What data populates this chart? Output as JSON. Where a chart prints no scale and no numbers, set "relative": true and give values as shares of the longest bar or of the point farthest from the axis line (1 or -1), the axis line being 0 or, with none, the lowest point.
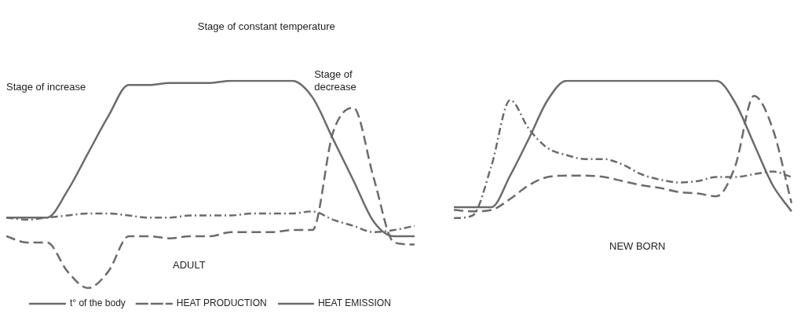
{
  "chart_data": [
    {
      "type": "line",
      "relative": true,
      "legend": "bottom",
      "categories": [
        null,
        null,
        null,
        null,
        null,
        null,
        null,
        null,
        null,
        null,
        null,
        null,
        null,
        null,
        null,
        null,
        null,
        null,
        null,
        null,
        null
      ],
      "annotations": [
        "Stage of constant temperature",
        "Stage of increase",
        "Stage of decrease",
        "ADULT"
      ],
      "series": [
        {
          "name": "t° of the body",
          "color": "#6b6b6b",
          "line_style": "solid",
          "values": [
            0.34,
            0.34,
            0.34,
            0.47,
            0.65,
            0.83,
            0.98,
            0.98,
            0.99,
            0.99,
            0.99,
            1.0,
            1.0,
            1.0,
            1.0,
            0.92,
            0.72,
            0.52,
            0.32,
            0.25,
            0.25
          ]
        },
        {
          "name": "HEAT PRODUCTION",
          "color": "#6b6b6b",
          "line_style": "dotted",
          "values": [
            0.34,
            0.33,
            0.34,
            0.35,
            0.36,
            0.36,
            0.35,
            0.34,
            0.34,
            0.35,
            0.35,
            0.35,
            0.36,
            0.36,
            0.36,
            0.37,
            0.33,
            0.3,
            0.27,
            0.28,
            0.3
          ]
        },
        {
          "name": "HEAT EMISSION",
          "color": "#6b6b6b",
          "line_style": "dashed",
          "values": [
            0.25,
            0.22,
            0.22,
            0.08,
            0,
            0.08,
            0.25,
            0.25,
            0.24,
            0.25,
            0.25,
            0.27,
            0.27,
            0.27,
            0.28,
            0.28,
            0.75,
            0.87,
            0.53,
            0.22,
            0.21
          ]
        }
      ]
    },
    {
      "type": "line",
      "relative": true,
      "categories": [
        null,
        null,
        null,
        null,
        null,
        null,
        null,
        null,
        null,
        null,
        null,
        null,
        null,
        null,
        null,
        null,
        null,
        null,
        null
      ],
      "annotations": [
        "NEW BORN"
      ],
      "series": [
        {
          "color": "#6b6b6b",
          "line_style": "solid",
          "values": [
            0.08,
            0.08,
            0.08,
            0.31,
            0.58,
            0.86,
            1,
            1,
            1,
            1,
            1,
            1,
            1,
            1,
            1,
            0.84,
            0.54,
            0.24,
            0.05
          ]
        },
        {
          "color": "#6b6b6b",
          "line_style": "dotted",
          "values": [
            0,
            0.02,
            0.38,
            0.86,
            0.65,
            0.51,
            0.46,
            0.43,
            0.43,
            0.39,
            0.32,
            0.28,
            0.26,
            0.27,
            0.3,
            0.3,
            0.32,
            0.34,
            0.3
          ]
        },
        {
          "color": "#6b6b6b",
          "line_style": "dashed",
          "values": [
            0.06,
            0.05,
            0.06,
            0.14,
            0.24,
            0.3,
            0.31,
            0.31,
            0.3,
            0.27,
            0.24,
            0.22,
            0.19,
            0.18,
            0.16,
            0.38,
            0.89,
            0.65,
            0.11
          ]
        }
      ]
    }
  ]
}
